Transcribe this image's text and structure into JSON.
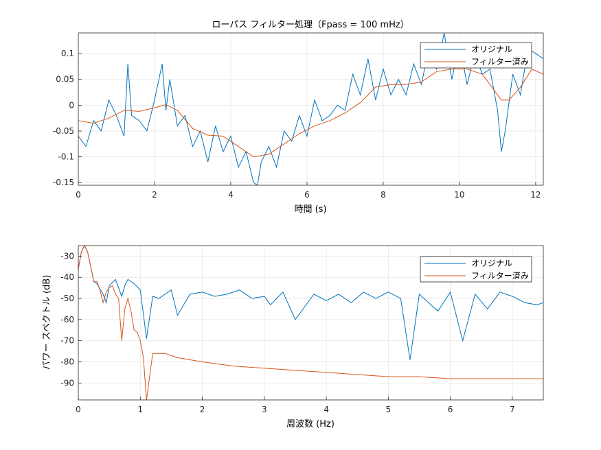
{
  "chart_data": [
    {
      "type": "line",
      "title": "ローパス フィルター処理（Fpass = 100 mHz）",
      "xlabel": "時間 (s)",
      "ylabel": "",
      "xlim": [
        0,
        12.2
      ],
      "ylim": [
        -0.155,
        0.14
      ],
      "xticks": [
        0,
        2,
        4,
        6,
        8,
        10,
        12
      ],
      "yticks": [
        -0.15,
        -0.1,
        -0.05,
        0,
        0.05,
        0.1
      ],
      "ytick_labels": [
        "-0.15",
        "-0.1",
        "-0.05",
        "0",
        "0.05",
        "0.1"
      ],
      "grid": true,
      "legend_position": "top-right",
      "series": [
        {
          "name": "オリジナル",
          "color": "#0072BD",
          "x": [
            0,
            0.2,
            0.4,
            0.6,
            0.8,
            1.0,
            1.2,
            1.3,
            1.4,
            1.6,
            1.8,
            2.0,
            2.2,
            2.3,
            2.4,
            2.6,
            2.8,
            3.0,
            3.2,
            3.4,
            3.6,
            3.8,
            4.0,
            4.2,
            4.4,
            4.6,
            4.7,
            4.8,
            5.0,
            5.2,
            5.4,
            5.6,
            5.8,
            6.0,
            6.2,
            6.4,
            6.6,
            6.8,
            7.0,
            7.2,
            7.4,
            7.6,
            7.8,
            8.0,
            8.2,
            8.4,
            8.6,
            8.8,
            9.0,
            9.2,
            9.4,
            9.6,
            9.8,
            10.0,
            10.2,
            10.4,
            10.6,
            10.8,
            11.0,
            11.1,
            11.2,
            11.4,
            11.6,
            11.8,
            12.0,
            12.2
          ],
          "y": [
            -0.06,
            -0.08,
            -0.03,
            -0.05,
            0.01,
            -0.02,
            -0.06,
            0.08,
            -0.02,
            -0.03,
            -0.05,
            0.01,
            0.08,
            -0.01,
            0.05,
            -0.04,
            -0.02,
            -0.08,
            -0.05,
            -0.11,
            -0.04,
            -0.09,
            -0.06,
            -0.12,
            -0.09,
            -0.15,
            -0.155,
            -0.11,
            -0.08,
            -0.12,
            -0.05,
            -0.07,
            -0.02,
            -0.06,
            0.01,
            -0.03,
            -0.02,
            0.0,
            -0.01,
            0.06,
            0.02,
            0.09,
            0.01,
            0.07,
            0.02,
            0.05,
            0.02,
            0.08,
            0.04,
            0.11,
            0.07,
            0.14,
            0.05,
            0.12,
            0.04,
            0.1,
            0.06,
            0.07,
            -0.01,
            -0.09,
            -0.05,
            0.06,
            0.02,
            0.11,
            0.1,
            0.09
          ]
        },
        {
          "name": "フィルター済み",
          "color": "#D95319",
          "x": [
            0,
            0.4,
            0.8,
            1.2,
            1.6,
            2.0,
            2.3,
            2.6,
            3.0,
            3.4,
            3.8,
            4.2,
            4.6,
            5.0,
            5.4,
            5.8,
            6.2,
            6.6,
            7.0,
            7.4,
            7.8,
            8.2,
            8.6,
            9.0,
            9.4,
            9.8,
            10.2,
            10.6,
            10.9,
            11.1,
            11.3,
            11.6,
            11.9,
            12.2
          ],
          "y": [
            -0.03,
            -0.035,
            -0.025,
            -0.01,
            -0.012,
            -0.005,
            0.001,
            -0.01,
            -0.045,
            -0.058,
            -0.06,
            -0.08,
            -0.1,
            -0.095,
            -0.075,
            -0.055,
            -0.04,
            -0.03,
            -0.015,
            0.005,
            0.035,
            0.04,
            0.04,
            0.045,
            0.065,
            0.07,
            0.07,
            0.06,
            0.03,
            0.01,
            0.01,
            0.035,
            0.07,
            0.06
          ]
        }
      ]
    },
    {
      "type": "line",
      "title": "",
      "xlabel": "周波数 (Hz)",
      "ylabel": "パワー スペクトル (dB)",
      "xlim": [
        0,
        7.5
      ],
      "ylim": [
        -98,
        -25
      ],
      "xticks": [
        0,
        1,
        2,
        3,
        4,
        5,
        6,
        7
      ],
      "yticks": [
        -90,
        -80,
        -70,
        -60,
        -50,
        -40,
        -30
      ],
      "grid": true,
      "legend_position": "top-right",
      "series": [
        {
          "name": "オリジナル",
          "color": "#0072BD",
          "x": [
            0,
            0.05,
            0.1,
            0.15,
            0.2,
            0.25,
            0.3,
            0.4,
            0.45,
            0.5,
            0.6,
            0.7,
            0.75,
            0.8,
            0.9,
            1.0,
            1.1,
            1.2,
            1.3,
            1.5,
            1.6,
            1.8,
            2.0,
            2.2,
            2.4,
            2.6,
            2.8,
            3.0,
            3.1,
            3.3,
            3.5,
            3.8,
            4.0,
            4.2,
            4.4,
            4.6,
            4.8,
            5.0,
            5.2,
            5.35,
            5.5,
            5.8,
            6.0,
            6.2,
            6.4,
            6.6,
            6.8,
            7.0,
            7.2,
            7.4,
            7.5
          ],
          "y": [
            -36,
            -28,
            -25,
            -28,
            -35,
            -42,
            -43,
            -48,
            -52,
            -44,
            -41,
            -49,
            -44,
            -41,
            -43,
            -46,
            -69,
            -49,
            -50,
            -46,
            -58,
            -48,
            -47,
            -49,
            -48,
            -46,
            -50,
            -49,
            -53,
            -47,
            -60,
            -48,
            -51,
            -48,
            -52,
            -47,
            -50,
            -47,
            -50,
            -79,
            -48,
            -56,
            -47,
            -70,
            -48,
            -55,
            -47,
            -49,
            -52,
            -53,
            -52
          ]
        },
        {
          "name": "フィルター済み",
          "color": "#D95319",
          "x": [
            0,
            0.05,
            0.1,
            0.15,
            0.2,
            0.25,
            0.3,
            0.35,
            0.4,
            0.45,
            0.5,
            0.55,
            0.6,
            0.65,
            0.7,
            0.75,
            0.8,
            0.85,
            0.9,
            0.95,
            1.0,
            1.05,
            1.1,
            1.2,
            1.4,
            1.6,
            2.0,
            2.5,
            3.0,
            3.5,
            4.0,
            4.5,
            5.0,
            5.5,
            6.0,
            6.5,
            7.0,
            7.5
          ],
          "y": [
            -36,
            -28,
            -25,
            -28,
            -35,
            -42,
            -42,
            -46,
            -52,
            -47,
            -45,
            -44,
            -48,
            -50,
            -70,
            -55,
            -50,
            -56,
            -65,
            -66,
            -70,
            -78,
            -98,
            -76,
            -76,
            -78,
            -80,
            -82,
            -83,
            -84,
            -85,
            -86,
            -87,
            -87,
            -88,
            -88,
            -88,
            -88
          ]
        }
      ]
    }
  ]
}
